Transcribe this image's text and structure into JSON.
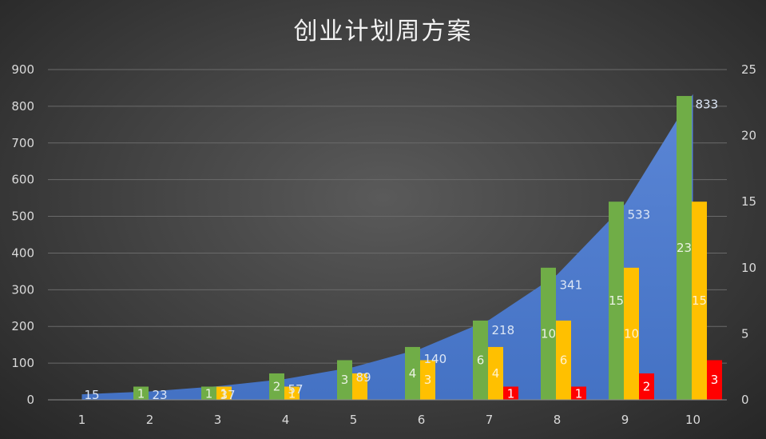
{
  "chart_data": {
    "type": "bar",
    "title": "创业计划周方案",
    "categories": [
      "1",
      "2",
      "3",
      "4",
      "5",
      "6",
      "7",
      "8",
      "9",
      "10"
    ],
    "y_left": {
      "min": 0,
      "max": 900,
      "ticks": [
        "0",
        "100",
        "200",
        "300",
        "400",
        "500",
        "600",
        "700",
        "800",
        "900"
      ]
    },
    "y_right": {
      "min": 0,
      "max": 25,
      "ticks": [
        "0",
        "5",
        "10",
        "15",
        "20",
        "25"
      ]
    },
    "area_series": {
      "axis": "left",
      "color": "#4472c4",
      "values": [
        15,
        23,
        37,
        57,
        89,
        140,
        218,
        341,
        533,
        833
      ],
      "labels": [
        "15",
        "23",
        "37",
        "57",
        "89",
        "140",
        "218",
        "341",
        "533",
        "833"
      ]
    },
    "series": [
      {
        "axis": "right",
        "color": "#70ad47",
        "values": [
          0,
          1,
          1,
          2,
          3,
          4,
          6,
          10,
          15,
          23
        ],
        "labels": [
          "",
          "1",
          "1",
          "2",
          "3",
          "4",
          "6",
          "10",
          "15",
          "23"
        ]
      },
      {
        "axis": "right",
        "color": "#ffc000",
        "values": [
          0,
          0,
          1,
          1,
          2,
          3,
          4,
          6,
          10,
          15
        ],
        "labels": [
          "",
          "",
          "1",
          "1",
          "",
          "3",
          "4",
          "6",
          "10",
          "15"
        ]
      },
      {
        "axis": "right",
        "color": "#ff0000",
        "values": [
          0,
          0,
          0,
          0,
          0,
          0,
          1,
          1,
          2,
          3
        ],
        "labels": [
          "",
          "",
          "",
          "",
          "",
          "",
          "1",
          "1",
          "2",
          "3"
        ]
      }
    ],
    "legend": "none",
    "grid": true
  }
}
